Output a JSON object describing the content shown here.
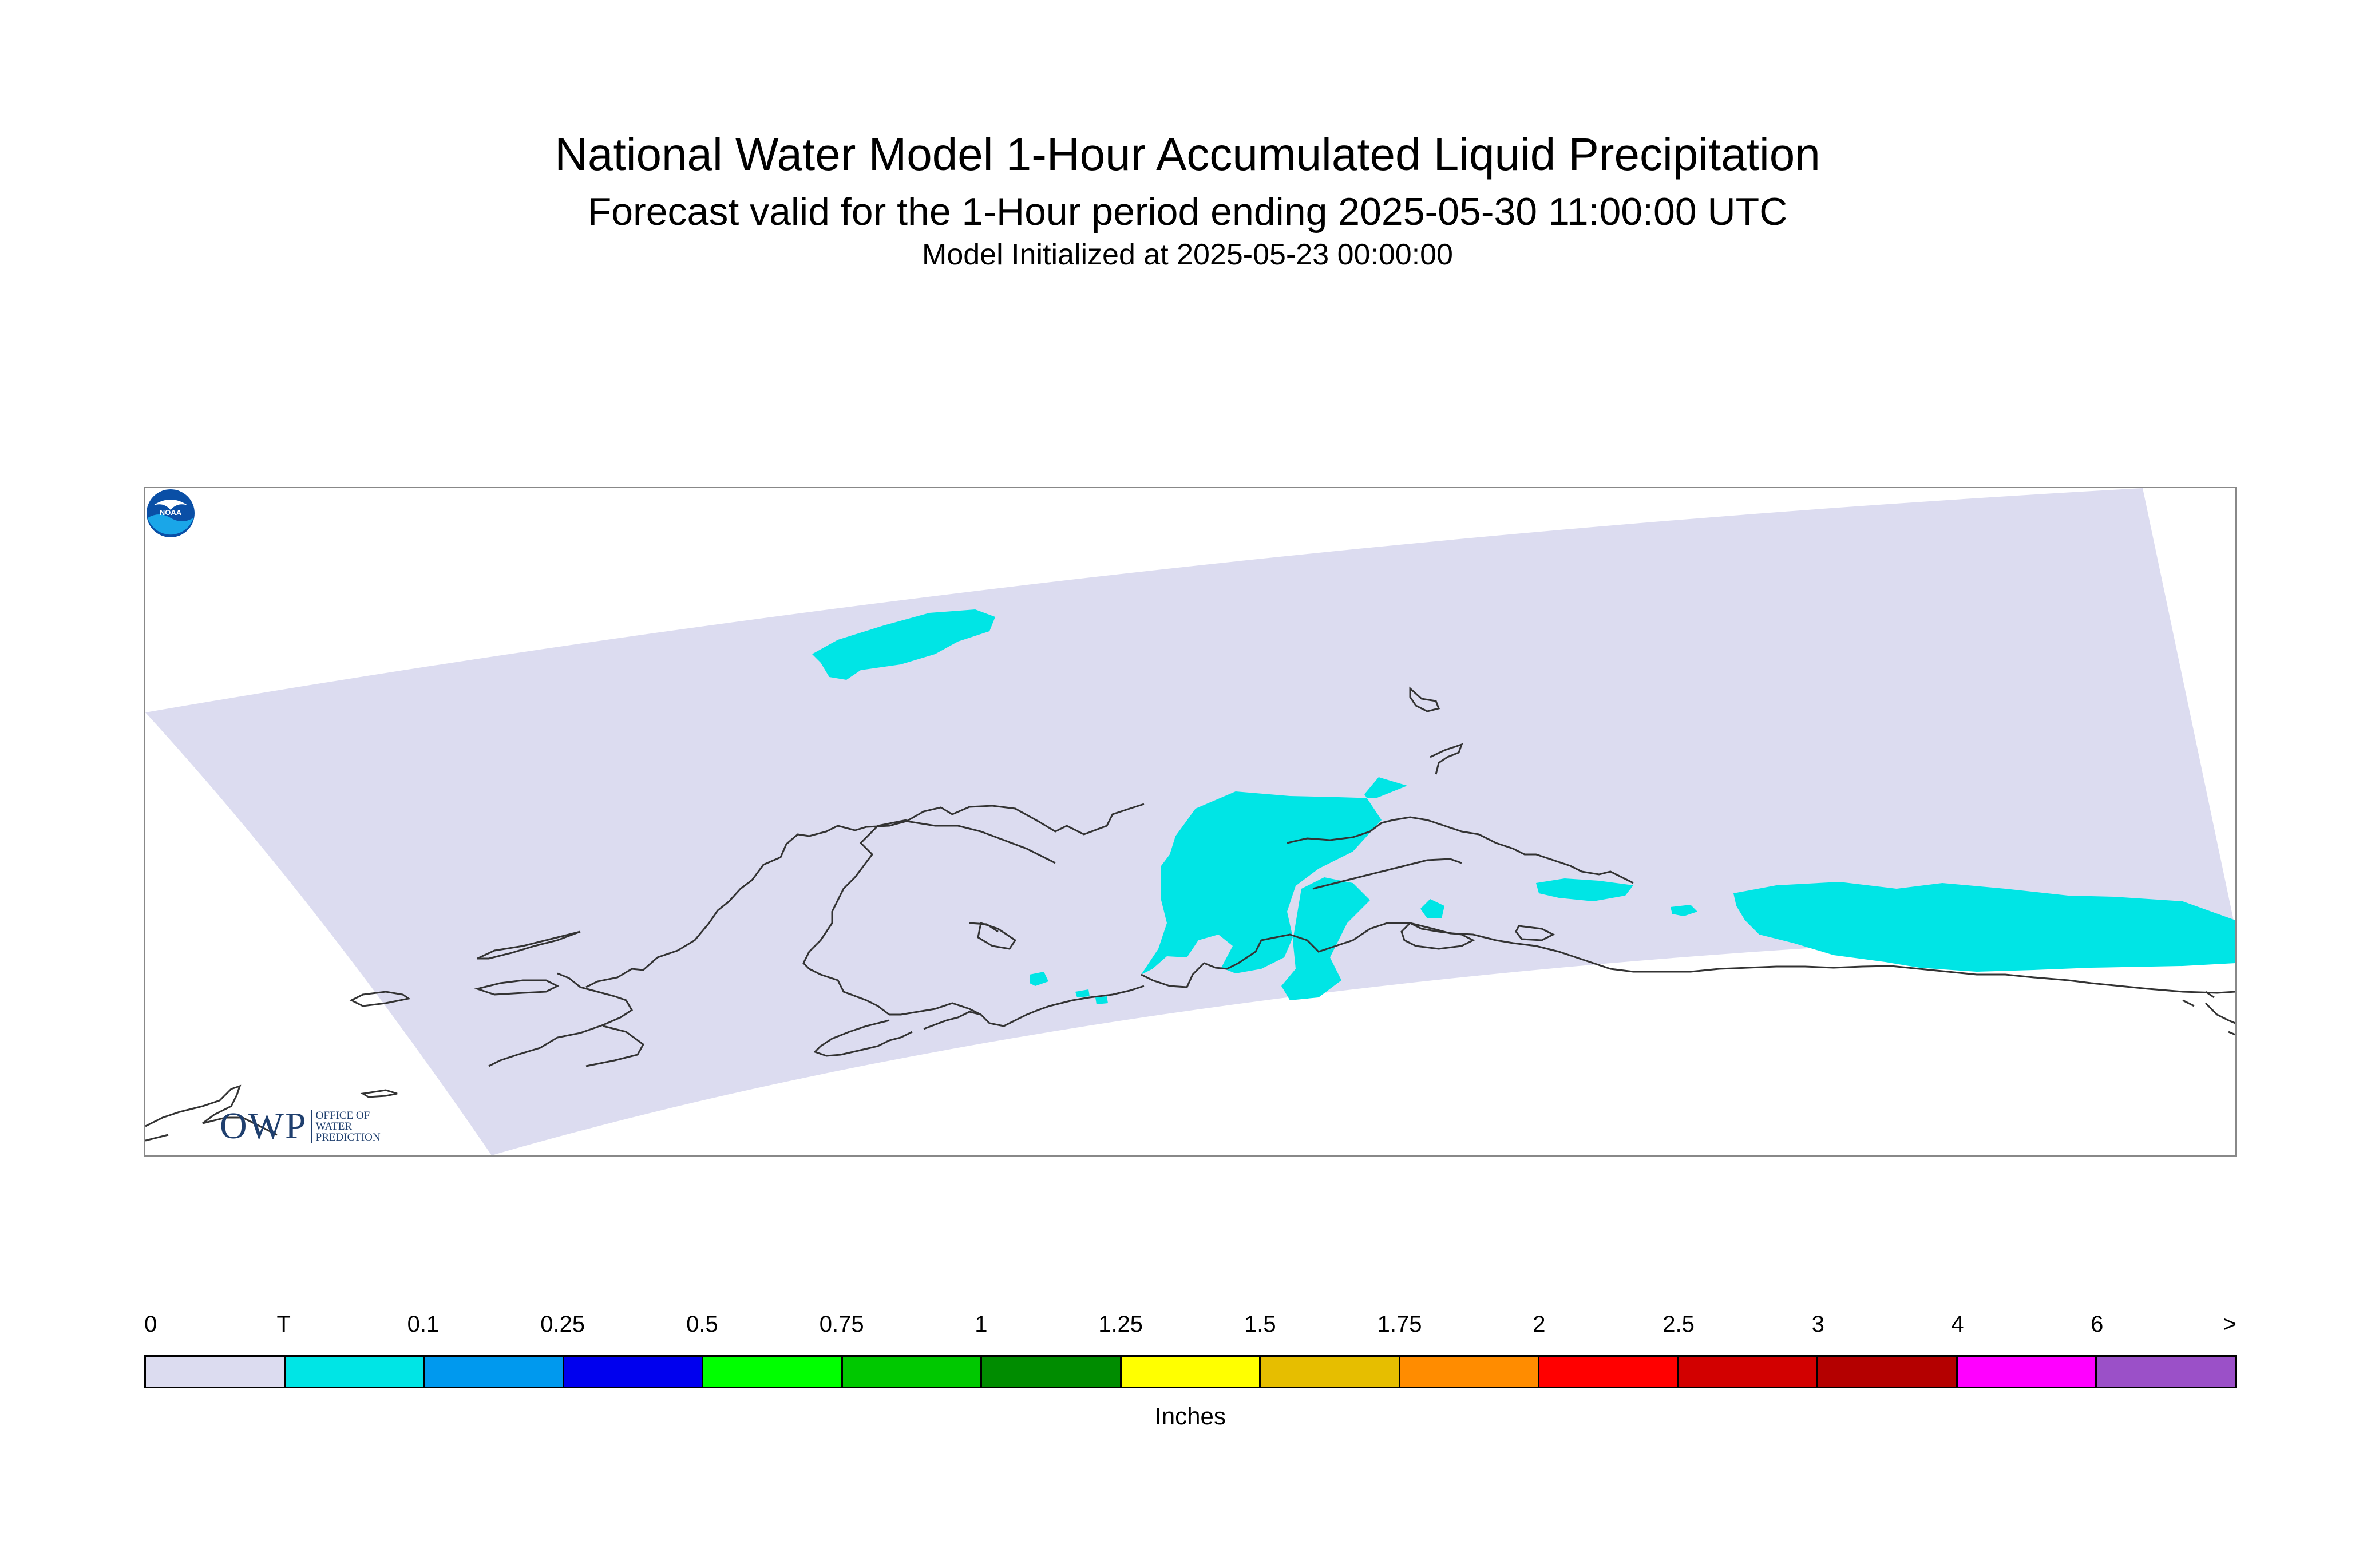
{
  "header": {
    "title": "National Water Model 1-Hour Accumulated Liquid Precipitation",
    "subtitle": "Forecast valid for the 1-Hour period ending 2025-05-30 11:00:00 UTC",
    "initialized": "Model Initialized at 2025-05-23 00:00:00"
  },
  "map": {
    "domain_fill_color": "#dcdcf0",
    "precip_color": "#00e5e5",
    "coastline_color": "#333333",
    "owp_logo": {
      "letters": "OWP",
      "line1": "OFFICE OF",
      "line2": "WATER",
      "line3": "PREDICTION",
      "color": "#1f3f6e"
    },
    "noaa_logo": {
      "text": "NOAA",
      "icon": "noaa-emblem-icon"
    }
  },
  "legend": {
    "units": "Inches",
    "tick_labels": [
      "0",
      "T",
      "0.1",
      "0.25",
      "0.5",
      "0.75",
      "1",
      "1.25",
      "1.5",
      "1.75",
      "2",
      "2.5",
      "3",
      "4",
      "6",
      ">"
    ],
    "colors": [
      "#dcdcf0",
      "#00e5e5",
      "#0099ee",
      "#0000ee",
      "#00ff00",
      "#00c800",
      "#008c00",
      "#ffff00",
      "#e6be00",
      "#ff8c00",
      "#ff0000",
      "#d20000",
      "#b40000",
      "#ff00ff",
      "#9b50c8"
    ]
  }
}
